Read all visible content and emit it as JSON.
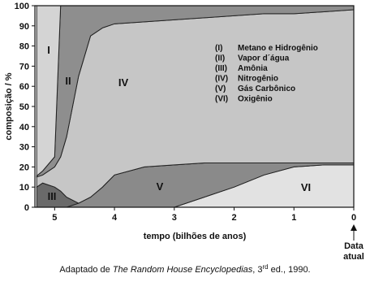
{
  "chart_data": {
    "type": "stacked-area",
    "x": [
      5.3,
      5.2,
      5.0,
      4.9,
      4.8,
      4.6,
      4.4,
      4.2,
      4.0,
      3.5,
      3.0,
      2.5,
      2.0,
      1.5,
      1.0,
      0.5,
      0
    ],
    "xlim": [
      5.33,
      0
    ],
    "xticks": [
      5,
      4,
      3,
      2,
      1,
      0
    ],
    "ylim": [
      0,
      100
    ],
    "yticks": [
      0,
      10,
      20,
      30,
      40,
      50,
      60,
      70,
      80,
      90,
      100
    ],
    "xlabel": "tempo (bilhões de anos)",
    "ylabel": "composição / %",
    "x_annotation": [
      "Data",
      "atual"
    ],
    "series": [
      {
        "label": "(I)",
        "region": "I",
        "name": "Metano e Hidrogênio",
        "color": "#d4d4d4",
        "values": [
          84.5,
          82,
          75,
          0,
          0,
          0,
          0,
          0,
          0,
          0,
          0,
          0,
          0,
          0,
          0,
          0,
          0
        ]
      },
      {
        "label": "(II)",
        "region": "II",
        "name": "Vapor d´água",
        "color": "#8e8e8e",
        "values": [
          0.5,
          2,
          5,
          75,
          65,
          35,
          15,
          11,
          9,
          8,
          7,
          6,
          5,
          4,
          4,
          3,
          2
        ]
      },
      {
        "label": "(III)",
        "region": "III",
        "name": "Amônia",
        "color": "#6a6a6a",
        "values": [
          10,
          12,
          10,
          8,
          5,
          0,
          0,
          0,
          0,
          0,
          0,
          0,
          0,
          0,
          0,
          0,
          0
        ]
      },
      {
        "label": "(IV)",
        "region": "IV",
        "name": "Nitrogênio",
        "color": "#c6c6c6",
        "values": [
          5,
          4,
          10,
          17,
          30,
          63,
          80,
          79,
          75,
          72,
          72,
          72,
          73,
          74,
          74,
          75,
          76
        ]
      },
      {
        "label": "(V)",
        "region": "V",
        "name": "Gás Carbônico",
        "color": "#8a8a8a",
        "values": [
          0,
          0,
          0,
          0,
          0,
          2,
          5,
          10,
          16,
          20,
          21,
          17,
          12,
          6,
          2,
          1,
          1
        ]
      },
      {
        "label": "(VI)",
        "region": "VI",
        "name": "Oxigênio",
        "color": "#e2e2e2",
        "values": [
          0,
          0,
          0,
          0,
          0,
          0,
          0,
          0,
          0,
          0,
          0,
          5,
          10,
          16,
          20,
          21,
          21
        ]
      }
    ],
    "caption": {
      "prefix": "Adaptado de ",
      "source": "The Random House Encyclopedias",
      "sep": ", 3",
      "sup": "rd",
      "suffix": " ed., 1990."
    }
  }
}
